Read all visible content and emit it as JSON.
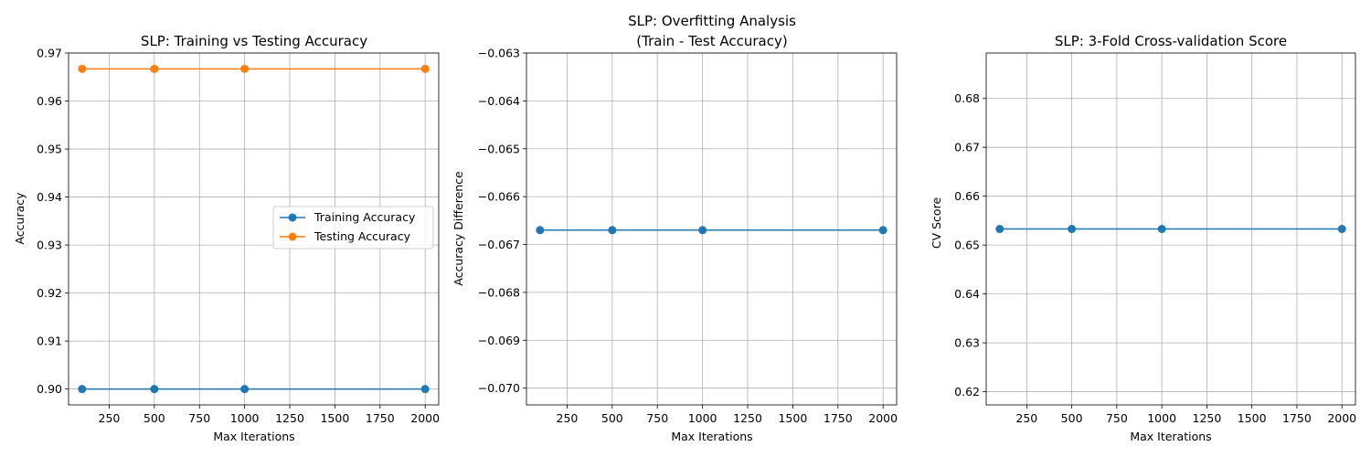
{
  "chart_data": [
    {
      "type": "line",
      "title": "SLP: Training vs Testing Accuracy",
      "title_lines": [
        "SLP: Training vs Testing Accuracy"
      ],
      "xlabel": "Max Iterations",
      "ylabel": "Accuracy",
      "xlim": [
        25,
        2075
      ],
      "ylim": [
        0.8967,
        0.97
      ],
      "xticks": [
        250,
        500,
        750,
        1000,
        1250,
        1500,
        1750,
        2000
      ],
      "xtick_labels": [
        "250",
        "500",
        "750",
        "1000",
        "1250",
        "1500",
        "1750",
        "2000"
      ],
      "yticks": [
        0.9,
        0.91,
        0.92,
        0.93,
        0.94,
        0.95,
        0.96,
        0.97
      ],
      "ytick_labels": [
        "0.90",
        "0.91",
        "0.92",
        "0.93",
        "0.94",
        "0.95",
        "0.96",
        "0.97"
      ],
      "x": [
        100,
        500,
        1000,
        2000
      ],
      "series": [
        {
          "name": "Training Accuracy",
          "values": [
            0.9,
            0.9,
            0.9,
            0.9
          ],
          "color": "#1f77b4"
        },
        {
          "name": "Testing Accuracy",
          "values": [
            0.9667,
            0.9667,
            0.9667,
            0.9667
          ],
          "color": "#ff7f0e"
        }
      ],
      "grid": true,
      "legend": "center-right"
    },
    {
      "type": "line",
      "title": "SLP: Overfitting Analysis\n(Train - Test Accuracy)",
      "title_lines": [
        "SLP: Overfitting Analysis",
        "(Train - Test Accuracy)"
      ],
      "xlabel": "Max Iterations",
      "ylabel": "Accuracy Difference",
      "xlim": [
        25,
        2075
      ],
      "ylim": [
        -0.07035,
        -0.063
      ],
      "xticks": [
        250,
        500,
        750,
        1000,
        1250,
        1500,
        1750,
        2000
      ],
      "xtick_labels": [
        "250",
        "500",
        "750",
        "1000",
        "1250",
        "1500",
        "1750",
        "2000"
      ],
      "yticks": [
        -0.07,
        -0.069,
        -0.068,
        -0.067,
        -0.066,
        -0.065,
        -0.064,
        -0.063
      ],
      "ytick_labels": [
        "−0.070",
        "−0.069",
        "−0.068",
        "−0.067",
        "−0.066",
        "−0.065",
        "−0.064",
        "−0.063"
      ],
      "x": [
        100,
        500,
        1000,
        2000
      ],
      "series": [
        {
          "values": [
            -0.0667,
            -0.0667,
            -0.0667,
            -0.0667
          ],
          "color": "#1f77b4"
        }
      ],
      "grid": true
    },
    {
      "type": "line",
      "title": "SLP: 3-Fold Cross-validation Score",
      "title_lines": [
        "SLP: 3-Fold Cross-validation Score"
      ],
      "xlabel": "Max Iterations",
      "ylabel": "CV Score",
      "xlim": [
        25,
        2075
      ],
      "ylim": [
        0.6173,
        0.6893
      ],
      "xticks": [
        250,
        500,
        750,
        1000,
        1250,
        1500,
        1750,
        2000
      ],
      "xtick_labels": [
        "250",
        "500",
        "750",
        "1000",
        "1250",
        "1500",
        "1750",
        "2000"
      ],
      "yticks": [
        0.62,
        0.63,
        0.64,
        0.65,
        0.66,
        0.67,
        0.68
      ],
      "ytick_labels": [
        "0.62",
        "0.63",
        "0.64",
        "0.65",
        "0.66",
        "0.67",
        "0.68"
      ],
      "x": [
        100,
        500,
        1000,
        2000
      ],
      "series": [
        {
          "values": [
            0.6533,
            0.6533,
            0.6533,
            0.6533
          ],
          "color": "#1f77b4"
        }
      ],
      "grid": true
    }
  ]
}
